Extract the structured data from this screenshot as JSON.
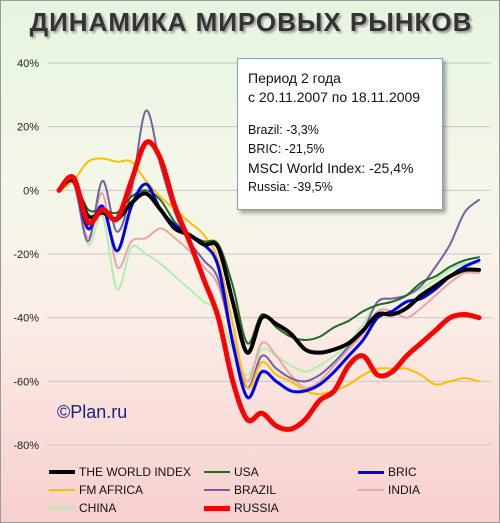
{
  "chart_data": {
    "type": "line",
    "title": "ДИНАМИКА МИРОВЫХ РЫНКОВ",
    "ylim": [
      -80,
      40
    ],
    "yticks": [
      "40%",
      "20%",
      "0%",
      "-20%",
      "-40%",
      "-60%",
      "-80%"
    ],
    "ytick_values": [
      40,
      20,
      0,
      -20,
      -40,
      -60,
      -80
    ],
    "grid": "horizontal",
    "legend_position": "bottom",
    "x_points": 30,
    "series": [
      {
        "name": "THE WORLD INDEX",
        "color": "#000000",
        "width": 4,
        "values": [
          0,
          3,
          -8,
          -7,
          -9,
          -4,
          -1,
          -6,
          -12,
          -14,
          -17,
          -18,
          -35,
          -51,
          -40,
          -42,
          -45,
          -50,
          -51,
          -50,
          -48,
          -44,
          -39,
          -39,
          -37,
          -33,
          -30,
          -27,
          -25,
          -25
        ]
      },
      {
        "name": "USA",
        "color": "#1f6b1f",
        "width": 2,
        "values": [
          0,
          3,
          -6,
          -6,
          -7,
          -2,
          0,
          -3,
          -10,
          -14,
          -16,
          -17,
          -30,
          -48,
          -39,
          -43,
          -46,
          -47,
          -46,
          -43,
          -41,
          -38,
          -36,
          -35,
          -33,
          -29,
          -27,
          -24,
          -22,
          -21
        ]
      },
      {
        "name": "BRIC",
        "color": "#0000ee",
        "width": 3,
        "values": [
          0,
          3,
          -12,
          -5,
          -19,
          -5,
          2,
          -6,
          -11,
          -14,
          -17,
          -24,
          -48,
          -65,
          -57,
          -60,
          -63,
          -63,
          -61,
          -57,
          -52,
          -47,
          -40,
          -38,
          -35,
          -34,
          -31,
          -27,
          -24,
          -22
        ]
      },
      {
        "name": "FM AFRICA",
        "color": "#ffbf00",
        "width": 2,
        "values": [
          0,
          3,
          9,
          10,
          9,
          9,
          3,
          -2,
          -6,
          -10,
          -14,
          -22,
          -42,
          -62,
          -54,
          -58,
          -60,
          -63,
          -64,
          -63,
          -61,
          -58,
          -56,
          -56,
          -56,
          -58,
          -61,
          -60,
          -59,
          -60
        ]
      },
      {
        "name": "BRAZIL",
        "color": "#7262a2",
        "width": 2,
        "values": [
          0,
          3,
          -16,
          3,
          -13,
          0,
          25,
          8,
          -7,
          -16,
          -22,
          -28,
          -48,
          -62,
          -52,
          -56,
          -59,
          -60,
          -58,
          -54,
          -49,
          -44,
          -35,
          -34,
          -33,
          -30,
          -24,
          -17,
          -7,
          -3
        ]
      },
      {
        "name": "INDIA",
        "color": "#e8a6a6",
        "width": 2,
        "values": [
          0,
          2,
          -15,
          -1,
          -24,
          -16,
          -15,
          -12,
          -15,
          -19,
          -24,
          -30,
          -46,
          -60,
          -48,
          -52,
          -58,
          -62,
          -60,
          -55,
          -50,
          -45,
          -38,
          -38,
          -40,
          -37,
          -33,
          -29,
          -26,
          -26
        ]
      },
      {
        "name": "CHINA",
        "color": "#aef0ae",
        "width": 2,
        "values": [
          0,
          2,
          -17,
          -8,
          -31,
          -18,
          -20,
          -23,
          -27,
          -31,
          -35,
          -38,
          -50,
          -58,
          -50,
          -52,
          -55,
          -57,
          -55,
          -52,
          -48,
          -42,
          -35,
          -34,
          -33,
          -31,
          -28,
          -25,
          -23,
          -23
        ]
      },
      {
        "name": "RUSSIA",
        "color": "#ff0000",
        "width": 5,
        "values": [
          0,
          4,
          -10,
          -6,
          -9,
          3,
          15,
          10,
          -5,
          -16,
          -28,
          -40,
          -60,
          -72,
          -70,
          -74,
          -75,
          -72,
          -66,
          -63,
          -55,
          -52,
          -58,
          -57,
          -52,
          -48,
          -44,
          -40,
          -39,
          -40
        ]
      }
    ]
  },
  "info_box": {
    "period_label": "Период  2 года",
    "period_range": "с 20.11.2007 по 18.11.2009",
    "brazil": "Brazil: -3,3%",
    "bric": "BRIC: -21,5%",
    "msci": "MSCI World Index: -25,4%",
    "russia": "Russia: -39,5%"
  },
  "watermark": "©Plan.ru"
}
